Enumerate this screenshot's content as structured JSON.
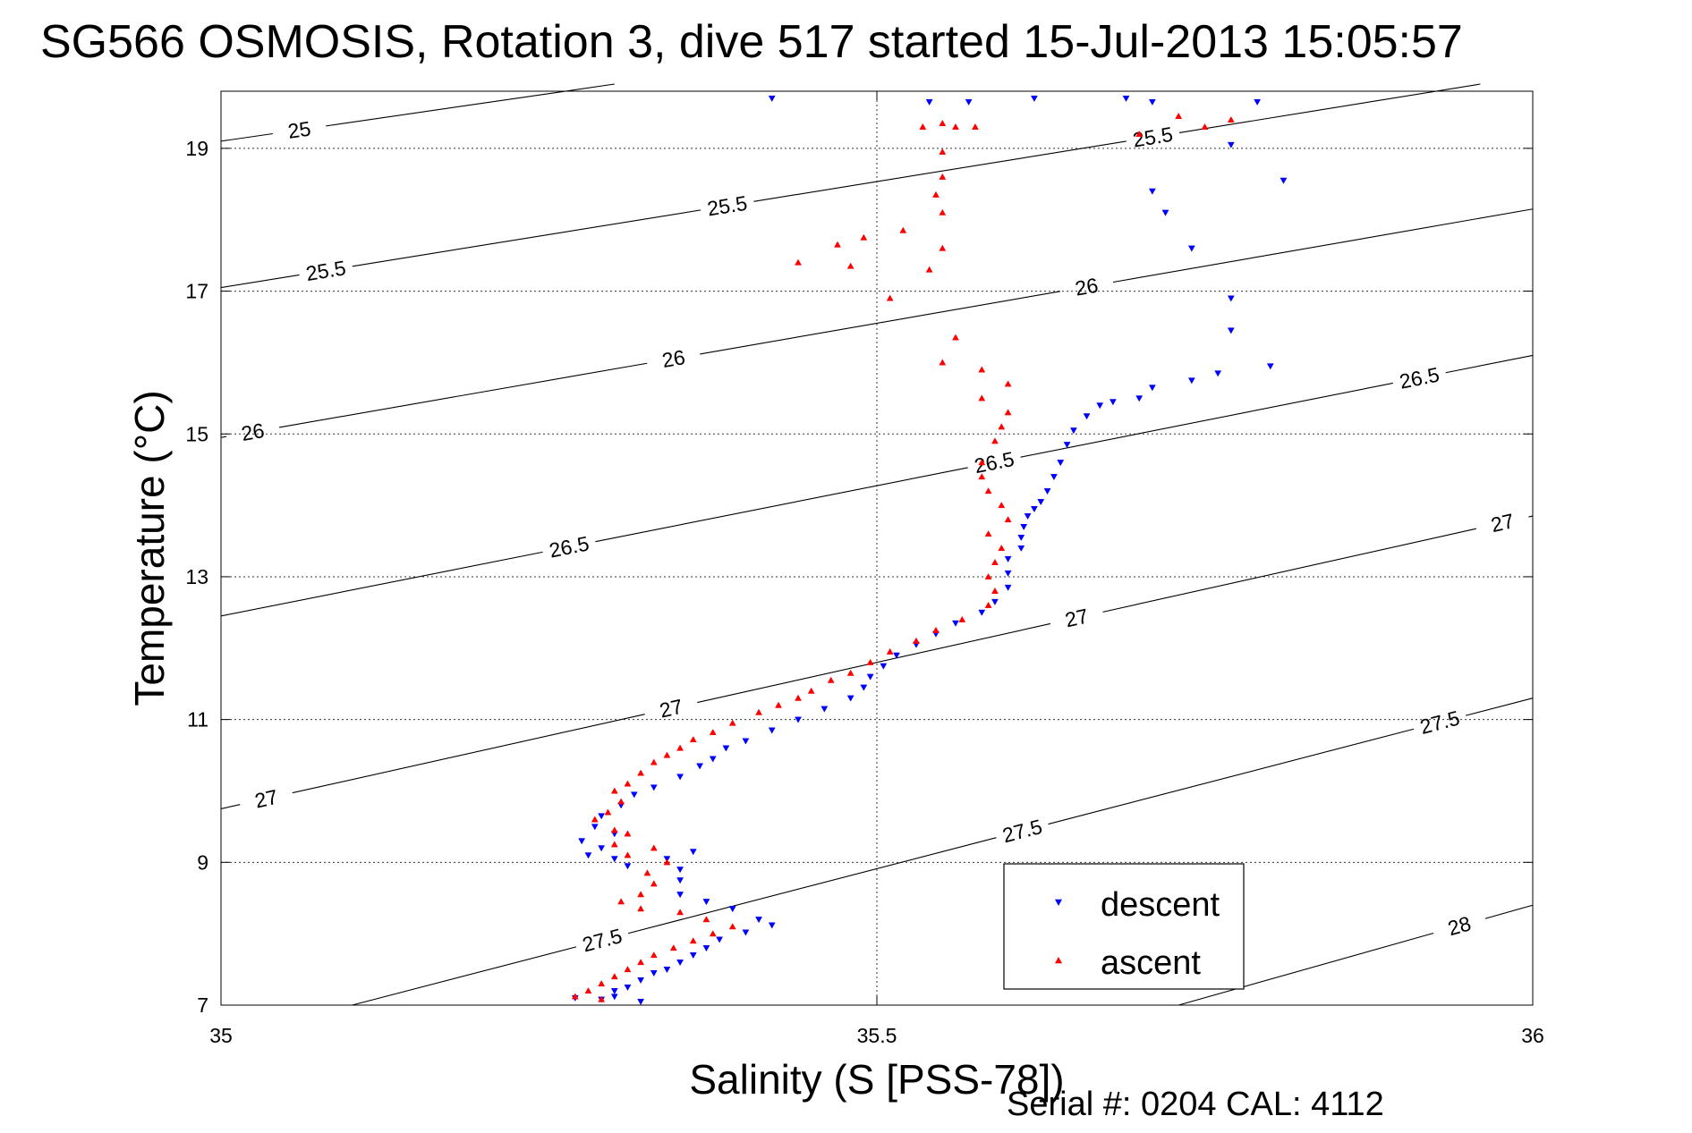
{
  "chart_data": {
    "type": "scatter",
    "title": "SG566 OSMOSIS, Rotation 3, dive 517 started 15-Jul-2013 15:05:57",
    "xlabel": "Salinity (S [PSS-78])",
    "ylabel": "Temperature (°C)",
    "footer": "Serial #: 0204  CAL: 4112",
    "xlim": [
      35,
      36
    ],
    "ylim": [
      7,
      19.8
    ],
    "xticks": [
      35,
      35.5,
      36
    ],
    "xtick_labels": [
      "35",
      "35.5",
      "36"
    ],
    "yticks": [
      7,
      9,
      11,
      13,
      15,
      17,
      19
    ],
    "ytick_labels": [
      "7",
      "9",
      "11",
      "13",
      "15",
      "17",
      "19"
    ],
    "grid": true,
    "legend_position": "bottom-right",
    "colors": {
      "descent": "#0000ff",
      "ascent": "#ff0000",
      "contour": "#000000"
    },
    "density_contours": [
      {
        "level": "25",
        "points": [
          [
            35.0,
            19.1
          ],
          [
            35.3,
            19.9
          ]
        ],
        "labels": [
          [
            35.06,
            19.22
          ]
        ]
      },
      {
        "level": "25.5",
        "points": [
          [
            35.0,
            17.05
          ],
          [
            35.96,
            19.9
          ]
        ],
        "labels": [
          [
            35.08,
            17.28
          ],
          [
            35.385,
            18.3
          ],
          [
            35.71,
            19.2
          ]
        ]
      },
      {
        "level": "26",
        "points": [
          [
            35.0,
            14.95
          ],
          [
            36.0,
            18.15
          ]
        ],
        "labels": [
          [
            35.024,
            15.05
          ],
          [
            35.345,
            16.05
          ],
          [
            35.66,
            17.05
          ]
        ]
      },
      {
        "level": "26.5",
        "points": [
          [
            35.0,
            12.45
          ],
          [
            36.0,
            16.1
          ]
        ],
        "labels": [
          [
            35.265,
            13.45
          ],
          [
            35.59,
            14.55
          ],
          [
            35.915,
            15.65
          ]
        ]
      },
      {
        "level": "27",
        "points": [
          [
            35.0,
            9.75
          ],
          [
            36.0,
            13.85
          ]
        ],
        "labels": [
          [
            35.035,
            9.85
          ],
          [
            35.345,
            11.0
          ],
          [
            35.655,
            12.2
          ],
          [
            35.98,
            13.5
          ]
        ]
      },
      {
        "level": "27.5",
        "points": [
          [
            35.1,
            7.0
          ],
          [
            36.0,
            11.3
          ]
        ],
        "labels": [
          [
            35.29,
            7.95
          ],
          [
            35.61,
            9.5
          ],
          [
            35.93,
            10.9
          ]
        ]
      },
      {
        "level": "28",
        "points": [
          [
            35.73,
            7.0
          ],
          [
            36.0,
            8.4
          ]
        ],
        "labels": [
          [
            35.945,
            8.05
          ]
        ]
      }
    ],
    "series": [
      {
        "name": "descent",
        "marker": "triangle-down",
        "color": "#0000ff",
        "points": [
          [
            35.42,
            19.7
          ],
          [
            35.54,
            19.65
          ],
          [
            35.57,
            19.65
          ],
          [
            35.62,
            19.7
          ],
          [
            35.69,
            19.7
          ],
          [
            35.71,
            19.65
          ],
          [
            35.79,
            19.65
          ],
          [
            35.77,
            19.05
          ],
          [
            35.81,
            18.55
          ],
          [
            35.71,
            18.4
          ],
          [
            35.72,
            18.1
          ],
          [
            35.74,
            17.6
          ],
          [
            35.77,
            16.9
          ],
          [
            35.77,
            16.45
          ],
          [
            35.8,
            15.95
          ],
          [
            35.76,
            15.85
          ],
          [
            35.74,
            15.75
          ],
          [
            35.71,
            15.65
          ],
          [
            35.7,
            15.5
          ],
          [
            35.68,
            15.45
          ],
          [
            35.67,
            15.4
          ],
          [
            35.66,
            15.25
          ],
          [
            35.65,
            15.05
          ],
          [
            35.645,
            14.85
          ],
          [
            35.64,
            14.6
          ],
          [
            35.635,
            14.4
          ],
          [
            35.63,
            14.2
          ],
          [
            35.625,
            14.05
          ],
          [
            35.62,
            13.95
          ],
          [
            35.615,
            13.85
          ],
          [
            35.612,
            13.7
          ],
          [
            35.61,
            13.55
          ],
          [
            35.61,
            13.4
          ],
          [
            35.6,
            13.25
          ],
          [
            35.6,
            13.05
          ],
          [
            35.6,
            12.85
          ],
          [
            35.59,
            12.65
          ],
          [
            35.58,
            12.5
          ],
          [
            35.56,
            12.35
          ],
          [
            35.545,
            12.2
          ],
          [
            35.53,
            12.05
          ],
          [
            35.515,
            11.9
          ],
          [
            35.505,
            11.75
          ],
          [
            35.495,
            11.6
          ],
          [
            35.49,
            11.45
          ],
          [
            35.48,
            11.3
          ],
          [
            35.46,
            11.15
          ],
          [
            35.44,
            11.0
          ],
          [
            35.42,
            10.85
          ],
          [
            35.4,
            10.7
          ],
          [
            35.385,
            10.6
          ],
          [
            35.375,
            10.45
          ],
          [
            35.365,
            10.35
          ],
          [
            35.35,
            10.2
          ],
          [
            35.33,
            10.05
          ],
          [
            35.315,
            9.95
          ],
          [
            35.305,
            9.8
          ],
          [
            35.29,
            9.65
          ],
          [
            35.285,
            9.5
          ],
          [
            35.3,
            9.4
          ],
          [
            35.275,
            9.3
          ],
          [
            35.29,
            9.2
          ],
          [
            35.28,
            9.1
          ],
          [
            35.3,
            9.05
          ],
          [
            35.31,
            8.95
          ],
          [
            35.34,
            9.05
          ],
          [
            35.36,
            9.15
          ],
          [
            35.35,
            8.9
          ],
          [
            35.35,
            8.75
          ],
          [
            35.35,
            8.55
          ],
          [
            35.37,
            8.45
          ],
          [
            35.39,
            8.35
          ],
          [
            35.41,
            8.2
          ],
          [
            35.42,
            8.12
          ],
          [
            35.4,
            8.02
          ],
          [
            35.38,
            7.92
          ],
          [
            35.37,
            7.8
          ],
          [
            35.36,
            7.7
          ],
          [
            35.35,
            7.6
          ],
          [
            35.34,
            7.5
          ],
          [
            35.33,
            7.45
          ],
          [
            35.32,
            7.35
          ],
          [
            35.31,
            7.25
          ],
          [
            35.3,
            7.2
          ],
          [
            35.3,
            7.12
          ],
          [
            35.32,
            7.05
          ],
          [
            35.29,
            7.08
          ],
          [
            35.27,
            7.1
          ]
        ]
      },
      {
        "name": "ascent",
        "marker": "triangle-up",
        "color": "#ff0000",
        "points": [
          [
            35.77,
            19.4
          ],
          [
            35.73,
            19.45
          ],
          [
            35.75,
            19.3
          ],
          [
            35.7,
            19.2
          ],
          [
            35.55,
            19.35
          ],
          [
            35.56,
            19.3
          ],
          [
            35.535,
            19.3
          ],
          [
            35.575,
            19.3
          ],
          [
            35.55,
            18.95
          ],
          [
            35.55,
            18.6
          ],
          [
            35.545,
            18.35
          ],
          [
            35.55,
            18.1
          ],
          [
            35.52,
            17.85
          ],
          [
            35.49,
            17.75
          ],
          [
            35.47,
            17.65
          ],
          [
            35.44,
            17.4
          ],
          [
            35.48,
            17.35
          ],
          [
            35.55,
            17.6
          ],
          [
            35.54,
            17.3
          ],
          [
            35.51,
            16.9
          ],
          [
            35.56,
            16.35
          ],
          [
            35.55,
            16.0
          ],
          [
            35.58,
            15.9
          ],
          [
            35.6,
            15.7
          ],
          [
            35.58,
            15.5
          ],
          [
            35.6,
            15.3
          ],
          [
            35.595,
            15.1
          ],
          [
            35.59,
            14.9
          ],
          [
            35.58,
            14.6
          ],
          [
            35.58,
            14.4
          ],
          [
            35.585,
            14.2
          ],
          [
            35.595,
            14.0
          ],
          [
            35.6,
            13.8
          ],
          [
            35.585,
            13.6
          ],
          [
            35.595,
            13.4
          ],
          [
            35.59,
            13.2
          ],
          [
            35.585,
            13.0
          ],
          [
            35.59,
            12.8
          ],
          [
            35.585,
            12.6
          ],
          [
            35.565,
            12.4
          ],
          [
            35.545,
            12.25
          ],
          [
            35.53,
            12.1
          ],
          [
            35.51,
            11.95
          ],
          [
            35.495,
            11.8
          ],
          [
            35.48,
            11.65
          ],
          [
            35.465,
            11.55
          ],
          [
            35.45,
            11.4
          ],
          [
            35.44,
            11.3
          ],
          [
            35.425,
            11.2
          ],
          [
            35.41,
            11.1
          ],
          [
            35.39,
            10.95
          ],
          [
            35.375,
            10.82
          ],
          [
            35.36,
            10.72
          ],
          [
            35.35,
            10.6
          ],
          [
            35.34,
            10.5
          ],
          [
            35.33,
            10.4
          ],
          [
            35.32,
            10.25
          ],
          [
            35.31,
            10.1
          ],
          [
            35.3,
            10.0
          ],
          [
            35.305,
            9.85
          ],
          [
            35.295,
            9.7
          ],
          [
            35.285,
            9.6
          ],
          [
            35.3,
            9.45
          ],
          [
            35.31,
            9.4
          ],
          [
            35.3,
            9.25
          ],
          [
            35.31,
            9.1
          ],
          [
            35.33,
            9.2
          ],
          [
            35.34,
            9.0
          ],
          [
            35.325,
            8.85
          ],
          [
            35.33,
            8.7
          ],
          [
            35.32,
            8.55
          ],
          [
            35.305,
            8.45
          ],
          [
            35.32,
            8.35
          ],
          [
            35.35,
            8.3
          ],
          [
            35.37,
            8.2
          ],
          [
            35.39,
            8.1
          ],
          [
            35.375,
            8.0
          ],
          [
            35.36,
            7.9
          ],
          [
            35.345,
            7.8
          ],
          [
            35.33,
            7.7
          ],
          [
            35.32,
            7.6
          ],
          [
            35.31,
            7.5
          ],
          [
            35.3,
            7.4
          ],
          [
            35.29,
            7.3
          ],
          [
            35.28,
            7.2
          ],
          [
            35.27,
            7.12
          ],
          [
            35.29,
            7.08
          ]
        ]
      }
    ]
  }
}
